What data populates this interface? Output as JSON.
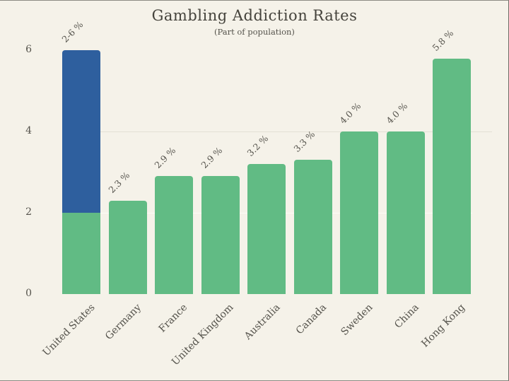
{
  "chart_data": {
    "type": "bar",
    "title": "Gambling Addiction Rates",
    "subtitle": "(Part of population)",
    "categories": [
      "United States",
      "Germany",
      "France",
      "United Kingdom",
      "Australia",
      "Canada",
      "Sweden",
      "China",
      "Hong Kong"
    ],
    "values": [
      6,
      2.3,
      2.9,
      2.9,
      3.2,
      3.3,
      4,
      4,
      5.8
    ],
    "bar_labels": [
      "2-6 %",
      "2.3 %",
      "2.9 %",
      "2.9 %",
      "3.2 %",
      "3.3 %",
      "4.0 %",
      "4.0 %",
      "5.8 %"
    ],
    "first_bar_segments": [
      {
        "from": 0,
        "to": 2,
        "color_key": "bar_green"
      },
      {
        "from": 2,
        "to": 6,
        "color_key": "bar_blue"
      }
    ],
    "yticks": [
      "0",
      "2",
      "4",
      "6"
    ],
    "ylim": [
      0,
      6
    ],
    "grid": "faint horizontal line at y=4, fainter at y=2",
    "legend": "none",
    "colors": {
      "bar_green": "#61bb84",
      "bar_blue": "#2e5f9e",
      "background": "#f5f2e9",
      "text": "#55534c",
      "title_text": "#45433c",
      "gridline_dark": "#e3e0d5",
      "gridline_light": "#fdfcf7"
    }
  }
}
